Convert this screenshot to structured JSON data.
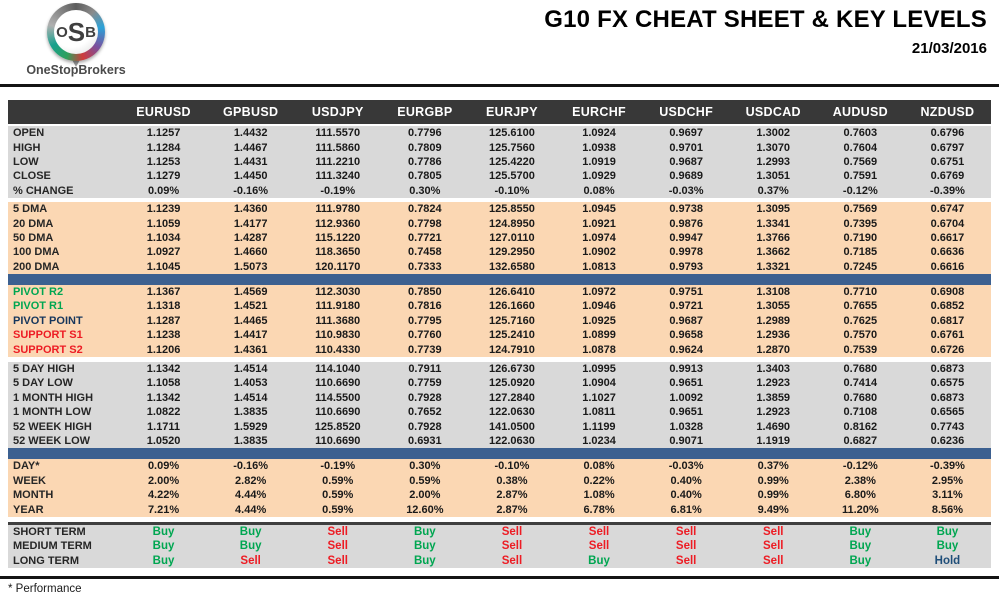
{
  "header": {
    "logo": {
      "o": "O",
      "s": "S",
      "b": "B",
      "brand": "OneStopBrokers"
    },
    "title": "G10 FX CHEAT SHEET & KEY LEVELS",
    "date": "21/03/2016"
  },
  "colors": {
    "header_bar": "#383838",
    "section_gray": "#d9d9d9",
    "section_peach": "#fbd7b3",
    "divider_blue": "#3c6090",
    "buy_green": "#00a651",
    "sell_red": "#ed1c24",
    "hold_navy": "#1f4e79",
    "pivot_green": "#00a651",
    "support_red": "#ed1c24",
    "pivot_point_navy": "#16365c"
  },
  "table": {
    "columns": [
      "EURUSD",
      "GPBUSD",
      "USDJPY",
      "EURGBP",
      "EURJPY",
      "EURCHF",
      "USDCHF",
      "USDCAD",
      "AUDUSD",
      "NZDUSD"
    ],
    "sections": [
      {
        "name": "ohlc",
        "bg": "gray",
        "gap": "sm",
        "rows": [
          {
            "label": "OPEN",
            "values": [
              "1.1257",
              "1.4432",
              "111.5570",
              "0.7796",
              "125.6100",
              "1.0924",
              "0.9697",
              "1.3002",
              "0.7603",
              "0.6796"
            ]
          },
          {
            "label": "HIGH",
            "values": [
              "1.1284",
              "1.4467",
              "111.5860",
              "0.7809",
              "125.7560",
              "1.0938",
              "0.9701",
              "1.3070",
              "0.7604",
              "0.6797"
            ]
          },
          {
            "label": "LOW",
            "values": [
              "1.1253",
              "1.4431",
              "111.2210",
              "0.7786",
              "125.4220",
              "1.0919",
              "0.9687",
              "1.2993",
              "0.7569",
              "0.6751"
            ]
          },
          {
            "label": "CLOSE",
            "values": [
              "1.1279",
              "1.4450",
              "111.3240",
              "0.7805",
              "125.5700",
              "1.0929",
              "0.9689",
              "1.3051",
              "0.7591",
              "0.6769"
            ]
          },
          {
            "label": "% CHANGE",
            "values": [
              "0.09%",
              "-0.16%",
              "-0.19%",
              "0.30%",
              "-0.10%",
              "0.08%",
              "-0.03%",
              "0.37%",
              "-0.12%",
              "-0.39%"
            ]
          }
        ]
      },
      {
        "name": "moving-averages",
        "bg": "peach",
        "gap": "md",
        "rows": [
          {
            "label": "5 DMA",
            "values": [
              "1.1239",
              "1.4360",
              "111.9780",
              "0.7824",
              "125.8550",
              "1.0945",
              "0.9738",
              "1.3095",
              "0.7569",
              "0.6747"
            ]
          },
          {
            "label": "20 DMA",
            "values": [
              "1.1059",
              "1.4177",
              "112.9360",
              "0.7798",
              "124.8950",
              "1.0921",
              "0.9876",
              "1.3341",
              "0.7395",
              "0.6704"
            ]
          },
          {
            "label": "50 DMA",
            "values": [
              "1.1034",
              "1.4287",
              "115.1220",
              "0.7721",
              "127.0110",
              "1.0974",
              "0.9947",
              "1.3766",
              "0.7190",
              "0.6617"
            ]
          },
          {
            "label": "100 DMA",
            "values": [
              "1.0927",
              "1.4660",
              "118.3650",
              "0.7458",
              "129.2950",
              "1.0902",
              "0.9978",
              "1.3662",
              "0.7185",
              "0.6636"
            ]
          },
          {
            "label": "200 DMA",
            "values": [
              "1.1045",
              "1.5073",
              "120.1170",
              "0.7333",
              "132.6580",
              "1.0813",
              "0.9793",
              "1.3321",
              "0.7245",
              "0.6616"
            ]
          }
        ]
      },
      {
        "type": "divider"
      },
      {
        "name": "pivots",
        "bg": "peach",
        "rows": [
          {
            "label": "PIVOT R2",
            "label_color": "green",
            "values": [
              "1.1367",
              "1.4569",
              "112.3030",
              "0.7850",
              "126.6410",
              "1.0972",
              "0.9751",
              "1.3108",
              "0.7710",
              "0.6908"
            ]
          },
          {
            "label": "PIVOT R1",
            "label_color": "green",
            "values": [
              "1.1318",
              "1.4521",
              "111.9180",
              "0.7816",
              "126.1660",
              "1.0946",
              "0.9721",
              "1.3055",
              "0.7655",
              "0.6852"
            ]
          },
          {
            "label": "PIVOT POINT",
            "label_color": "navy",
            "values": [
              "1.1287",
              "1.4465",
              "111.3680",
              "0.7795",
              "125.7160",
              "1.0925",
              "0.9687",
              "1.2989",
              "0.7625",
              "0.6817"
            ]
          },
          {
            "label": "SUPPORT S1",
            "label_color": "red",
            "values": [
              "1.1238",
              "1.4417",
              "110.9830",
              "0.7760",
              "125.2410",
              "1.0899",
              "0.9658",
              "1.2936",
              "0.7570",
              "0.6761"
            ]
          },
          {
            "label": "SUPPORT S2",
            "label_color": "red",
            "values": [
              "1.1206",
              "1.4361",
              "110.4330",
              "0.7739",
              "124.7910",
              "1.0878",
              "0.9624",
              "1.2870",
              "0.7539",
              "0.6726"
            ]
          }
        ]
      },
      {
        "name": "ranges",
        "bg": "gray",
        "gap": "lg",
        "rows": [
          {
            "label": "5 DAY HIGH",
            "values": [
              "1.1342",
              "1.4514",
              "114.1040",
              "0.7911",
              "126.6730",
              "1.0995",
              "0.9913",
              "1.3403",
              "0.7680",
              "0.6873"
            ]
          },
          {
            "label": "5 DAY LOW",
            "values": [
              "1.1058",
              "1.4053",
              "110.6690",
              "0.7759",
              "125.0920",
              "1.0904",
              "0.9651",
              "1.2923",
              "0.7414",
              "0.6575"
            ]
          },
          {
            "label": "1 MONTH HIGH",
            "values": [
              "1.1342",
              "1.4514",
              "114.5500",
              "0.7928",
              "127.2840",
              "1.1027",
              "1.0092",
              "1.3859",
              "0.7680",
              "0.6873"
            ]
          },
          {
            "label": "1 MONTH LOW",
            "values": [
              "1.0822",
              "1.3835",
              "110.6690",
              "0.7652",
              "122.0630",
              "1.0811",
              "0.9651",
              "1.2923",
              "0.7108",
              "0.6565"
            ]
          },
          {
            "label": "52 WEEK HIGH",
            "values": [
              "1.1711",
              "1.5929",
              "125.8520",
              "0.7928",
              "141.0500",
              "1.1199",
              "1.0328",
              "1.4690",
              "0.8162",
              "0.7743"
            ]
          },
          {
            "label": "52 WEEK LOW",
            "values": [
              "1.0520",
              "1.3835",
              "110.6690",
              "0.6931",
              "122.0630",
              "1.0234",
              "0.9071",
              "1.1919",
              "0.6827",
              "0.6236"
            ]
          }
        ]
      },
      {
        "type": "divider"
      },
      {
        "name": "performance",
        "bg": "peach",
        "rows": [
          {
            "label": "DAY*",
            "values": [
              "0.09%",
              "-0.16%",
              "-0.19%",
              "0.30%",
              "-0.10%",
              "0.08%",
              "-0.03%",
              "0.37%",
              "-0.12%",
              "-0.39%"
            ]
          },
          {
            "label": "WEEK",
            "values": [
              "2.00%",
              "2.82%",
              "0.59%",
              "0.59%",
              "0.38%",
              "0.22%",
              "0.40%",
              "0.99%",
              "2.38%",
              "2.95%"
            ]
          },
          {
            "label": "MONTH",
            "values": [
              "4.22%",
              "4.44%",
              "0.59%",
              "2.00%",
              "2.87%",
              "1.08%",
              "0.40%",
              "0.99%",
              "6.80%",
              "3.11%"
            ]
          },
          {
            "label": "YEAR",
            "values": [
              "7.21%",
              "4.44%",
              "0.59%",
              "12.60%",
              "2.87%",
              "6.78%",
              "6.81%",
              "9.49%",
              "11.20%",
              "8.56%"
            ]
          }
        ]
      },
      {
        "name": "recommendations",
        "bg": "gray",
        "top_line": true,
        "signals": true,
        "rows": [
          {
            "label": "SHORT TERM",
            "values": [
              "Buy",
              "Buy",
              "Sell",
              "Buy",
              "Sell",
              "Sell",
              "Sell",
              "Sell",
              "Buy",
              "Buy"
            ]
          },
          {
            "label": "MEDIUM TERM",
            "values": [
              "Buy",
              "Buy",
              "Sell",
              "Buy",
              "Sell",
              "Sell",
              "Sell",
              "Sell",
              "Buy",
              "Buy"
            ]
          },
          {
            "label": "LONG TERM",
            "values": [
              "Buy",
              "Sell",
              "Sell",
              "Buy",
              "Sell",
              "Buy",
              "Sell",
              "Sell",
              "Buy",
              "Hold"
            ]
          }
        ]
      }
    ]
  },
  "footer": {
    "note": "* Performance"
  }
}
